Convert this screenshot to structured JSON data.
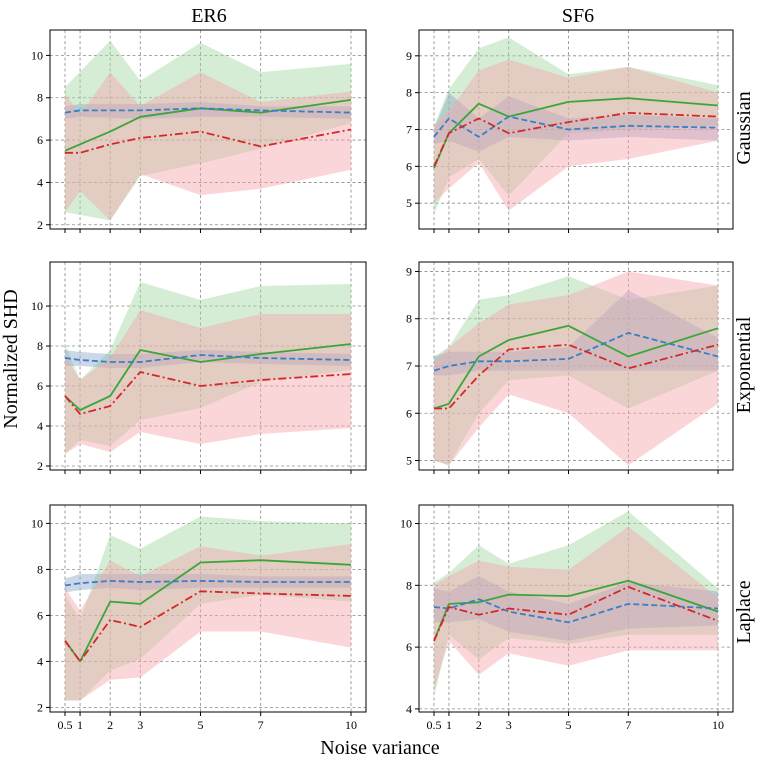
{
  "figure": {
    "xlabel": "Noise variance",
    "ylabel": "Normalized SHD",
    "col_titles": [
      "ER6",
      "SF6"
    ],
    "row_titles": [
      "Gaussian",
      "Exponential",
      "Laplace"
    ]
  },
  "colors": {
    "green": "#3aa63a",
    "blue": "#3a7fc4",
    "red": "#d62728",
    "green_fill": "#9fd89f",
    "blue_fill": "#8fa9c9",
    "red_fill": "#f7a3aa"
  },
  "chart_data": [
    {
      "type": "line",
      "panel": "ER6-Gaussian",
      "column": "ER6",
      "row": "Gaussian",
      "x": [
        0.5,
        1,
        2,
        3,
        5,
        7,
        10
      ],
      "xticks": [
        "0.5",
        "1",
        "2",
        "3",
        "5",
        "7",
        "10"
      ],
      "xlim": [
        0.5,
        10
      ],
      "ylim": [
        1.8,
        11.2
      ],
      "yticks": [
        2,
        4,
        6,
        8,
        10
      ],
      "series": [
        {
          "name": "green",
          "style": "solid",
          "values": [
            5.5,
            6.4,
            7.1,
            7.5,
            7.3,
            7.9
          ],
          "x": [
            0.5,
            2,
            3,
            5,
            7,
            10
          ],
          "band_low": [
            2.6,
            2.2,
            4.3,
            4.9,
            5.6,
            6.8
          ],
          "band_high": [
            8.5,
            10.7,
            8.8,
            10.6,
            9.2,
            9.6
          ]
        },
        {
          "name": "blue",
          "style": "dashed",
          "values": [
            7.3,
            7.4,
            7.4,
            7.5,
            7.4,
            7.3
          ],
          "x": [
            0.5,
            1,
            3,
            5,
            7,
            10
          ],
          "band_low": [
            7.0,
            7.1,
            7.0,
            7.1,
            7.1,
            7.0
          ],
          "band_high": [
            7.6,
            7.7,
            7.7,
            7.8,
            7.6,
            7.6
          ]
        },
        {
          "name": "red",
          "style": "dashdot",
          "values": [
            5.4,
            5.4,
            5.8,
            6.1,
            6.4,
            5.7,
            6.5
          ],
          "x": [
            0.5,
            1,
            2,
            3,
            5,
            7,
            10
          ],
          "band_low": [
            2.6,
            3.6,
            2.2,
            4.4,
            3.4,
            3.7,
            4.6
          ],
          "band_high": [
            8.2,
            7.2,
            9.2,
            7.6,
            9.2,
            7.8,
            8.3
          ]
        }
      ]
    },
    {
      "type": "line",
      "panel": "SF6-Gaussian",
      "column": "SF6",
      "row": "Gaussian",
      "x": [
        0.5,
        1,
        2,
        3,
        5,
        7,
        10
      ],
      "xticks": [
        "0.5",
        "1",
        "2",
        "3",
        "5",
        "7",
        "10"
      ],
      "xlim": [
        0.5,
        10
      ],
      "ylim": [
        4.3,
        9.7
      ],
      "yticks": [
        5,
        6,
        7,
        8,
        9
      ],
      "series": [
        {
          "name": "green",
          "style": "solid",
          "values": [
            5.95,
            6.9,
            7.7,
            7.35,
            7.75,
            7.85,
            7.65
          ],
          "x": [
            0.5,
            1,
            2,
            3,
            5,
            7,
            10
          ],
          "band_low": [
            4.7,
            5.7,
            6.2,
            5.2,
            6.9,
            7.0,
            7.1
          ],
          "band_high": [
            7.1,
            8.1,
            9.2,
            9.5,
            8.5,
            8.7,
            8.2
          ]
        },
        {
          "name": "blue",
          "style": "dashed",
          "values": [
            6.8,
            7.3,
            6.8,
            7.35,
            7.0,
            7.1,
            7.05
          ],
          "x": [
            0.5,
            1,
            2,
            3,
            5,
            7,
            10
          ],
          "band_low": [
            6.6,
            6.7,
            6.4,
            6.8,
            6.7,
            6.8,
            6.7
          ],
          "band_high": [
            7.0,
            8.0,
            7.3,
            7.9,
            7.3,
            7.4,
            7.3
          ]
        },
        {
          "name": "red",
          "style": "dashdot",
          "values": [
            6.0,
            6.9,
            7.3,
            6.9,
            7.2,
            7.45,
            7.35
          ],
          "x": [
            0.5,
            1,
            2,
            3,
            5,
            7,
            10
          ],
          "band_low": [
            5.0,
            5.4,
            6.1,
            4.8,
            6.0,
            6.2,
            6.7
          ],
          "band_high": [
            7.1,
            7.5,
            8.6,
            8.9,
            8.4,
            8.7,
            8.0
          ]
        }
      ]
    },
    {
      "type": "line",
      "panel": "ER6-Exponential",
      "column": "ER6",
      "row": "Exponential",
      "x": [
        0.5,
        1,
        2,
        3,
        5,
        7,
        10
      ],
      "xticks": [
        "0.5",
        "1",
        "2",
        "3",
        "5",
        "7",
        "10"
      ],
      "xlim": [
        0.5,
        10
      ],
      "ylim": [
        1.8,
        12.2
      ],
      "yticks": [
        2,
        4,
        6,
        8,
        10
      ],
      "series": [
        {
          "name": "green",
          "style": "solid",
          "values": [
            5.5,
            4.8,
            5.5,
            7.8,
            7.2,
            7.6,
            8.1
          ],
          "x": [
            0.5,
            1,
            2,
            3,
            5,
            7,
            10
          ],
          "band_low": [
            2.6,
            3.3,
            3.0,
            4.3,
            4.9,
            6.2,
            6.8
          ],
          "band_high": [
            8.1,
            6.3,
            7.8,
            11.2,
            10.3,
            11.0,
            11.1
          ]
        },
        {
          "name": "blue",
          "style": "dashed",
          "values": [
            7.4,
            7.3,
            7.2,
            7.2,
            7.55,
            7.4,
            7.3
          ],
          "x": [
            0.5,
            1,
            2,
            3,
            5,
            7,
            10
          ],
          "band_low": [
            7.0,
            7.0,
            6.9,
            6.9,
            7.2,
            7.1,
            7.0
          ],
          "band_high": [
            7.8,
            7.7,
            7.6,
            7.6,
            7.8,
            7.7,
            7.6
          ]
        },
        {
          "name": "red",
          "style": "dashdot",
          "values": [
            5.5,
            4.6,
            5.0,
            6.7,
            6.0,
            6.3,
            6.6
          ],
          "x": [
            0.5,
            1,
            2,
            3,
            5,
            7,
            10
          ],
          "band_low": [
            2.6,
            3.1,
            2.7,
            3.7,
            3.1,
            3.6,
            3.9
          ],
          "band_high": [
            7.5,
            6.3,
            7.4,
            9.8,
            8.9,
            9.6,
            9.6
          ]
        }
      ]
    },
    {
      "type": "line",
      "panel": "SF6-Exponential",
      "column": "SF6",
      "row": "Exponential",
      "x": [
        0.5,
        1,
        2,
        3,
        5,
        7,
        10
      ],
      "xticks": [
        "0.5",
        "1",
        "2",
        "3",
        "5",
        "7",
        "10"
      ],
      "xlim": [
        0.5,
        10
      ],
      "ylim": [
        4.8,
        9.2
      ],
      "yticks": [
        5,
        6,
        7,
        8,
        9
      ],
      "series": [
        {
          "name": "green",
          "style": "solid",
          "values": [
            6.1,
            6.2,
            7.2,
            7.55,
            7.85,
            7.2,
            7.8
          ],
          "x": [
            0.5,
            1,
            2,
            3,
            5,
            7,
            10
          ],
          "band_low": [
            5.0,
            4.9,
            6.0,
            6.7,
            6.8,
            6.1,
            6.9
          ],
          "band_high": [
            7.2,
            7.4,
            8.4,
            8.5,
            8.9,
            8.4,
            8.7
          ]
        },
        {
          "name": "blue",
          "style": "dashed",
          "values": [
            6.9,
            7.0,
            7.1,
            7.1,
            7.15,
            7.7,
            7.2
          ],
          "x": [
            0.5,
            1,
            2,
            3,
            5,
            7,
            10
          ],
          "band_low": [
            6.8,
            6.8,
            6.9,
            6.9,
            6.9,
            6.9,
            6.9
          ],
          "band_high": [
            7.2,
            7.3,
            7.3,
            7.3,
            7.4,
            8.6,
            7.6
          ]
        },
        {
          "name": "red",
          "style": "dashdot",
          "values": [
            6.1,
            6.1,
            6.8,
            7.35,
            7.45,
            6.95,
            7.45
          ],
          "x": [
            0.5,
            1,
            2,
            3,
            5,
            7,
            10
          ],
          "band_low": [
            5.0,
            4.9,
            5.7,
            6.4,
            6.0,
            4.9,
            6.2
          ],
          "band_high": [
            7.1,
            7.4,
            7.9,
            8.3,
            8.5,
            9.0,
            8.7
          ]
        }
      ]
    },
    {
      "type": "line",
      "panel": "ER6-Laplace",
      "column": "ER6",
      "row": "Laplace",
      "x": [
        0.5,
        1,
        2,
        3,
        5,
        7,
        10
      ],
      "xticks": [
        "0.5",
        "1",
        "2",
        "3",
        "5",
        "7",
        "10"
      ],
      "xlim": [
        0.5,
        10
      ],
      "ylim": [
        1.8,
        10.8
      ],
      "yticks": [
        2,
        4,
        6,
        8,
        10
      ],
      "series": [
        {
          "name": "green",
          "style": "solid",
          "values": [
            4.9,
            4.0,
            6.6,
            6.5,
            8.3,
            8.4,
            8.2
          ],
          "x": [
            0.5,
            1,
            2,
            3,
            5,
            7,
            10
          ],
          "band_low": [
            2.3,
            2.3,
            3.6,
            4.1,
            6.5,
            6.9,
            6.6
          ],
          "band_high": [
            6.9,
            5.8,
            9.5,
            8.9,
            10.3,
            10.1,
            10.0
          ]
        },
        {
          "name": "blue",
          "style": "dashed",
          "values": [
            7.3,
            7.4,
            7.5,
            7.45,
            7.5,
            7.45,
            7.45
          ],
          "x": [
            0.5,
            1,
            2,
            3,
            5,
            7,
            10
          ],
          "band_low": [
            7.0,
            7.1,
            7.2,
            7.1,
            7.2,
            7.2,
            7.2
          ],
          "band_high": [
            7.6,
            7.8,
            7.8,
            7.8,
            7.8,
            7.7,
            7.7
          ]
        },
        {
          "name": "red",
          "style": "dashdot",
          "values": [
            4.9,
            4.0,
            5.8,
            5.5,
            7.05,
            6.95,
            6.85
          ],
          "x": [
            0.5,
            1,
            2,
            3,
            5,
            7,
            10
          ],
          "band_low": [
            2.3,
            2.3,
            3.2,
            3.3,
            5.3,
            5.3,
            4.6
          ],
          "band_high": [
            7.2,
            6.2,
            8.4,
            7.7,
            9.0,
            8.6,
            9.1
          ]
        }
      ]
    },
    {
      "type": "line",
      "panel": "SF6-Laplace",
      "column": "SF6",
      "row": "Laplace",
      "x": [
        0.5,
        1,
        2,
        3,
        5,
        7,
        10
      ],
      "xticks": [
        "0.5",
        "1",
        "2",
        "3",
        "5",
        "7",
        "10"
      ],
      "xlim": [
        0.5,
        10
      ],
      "ylim": [
        3.9,
        10.6
      ],
      "yticks": [
        4,
        6,
        8,
        10
      ],
      "series": [
        {
          "name": "green",
          "style": "solid",
          "values": [
            6.2,
            7.4,
            7.45,
            7.7,
            7.65,
            8.15,
            7.15
          ],
          "x": [
            0.5,
            1,
            2,
            3,
            5,
            7,
            10
          ],
          "band_low": [
            4.4,
            6.4,
            5.6,
            6.3,
            6.1,
            6.4,
            6.4
          ],
          "band_high": [
            8.1,
            8.4,
            9.3,
            8.7,
            9.3,
            10.4,
            7.9
          ]
        },
        {
          "name": "blue",
          "style": "dashed",
          "values": [
            7.3,
            7.25,
            7.55,
            7.15,
            6.8,
            7.4,
            7.25
          ],
          "x": [
            0.5,
            1,
            2,
            3,
            5,
            7,
            10
          ],
          "band_low": [
            6.8,
            6.8,
            6.9,
            6.5,
            6.2,
            6.6,
            6.7
          ],
          "band_high": [
            7.9,
            7.8,
            8.3,
            7.8,
            7.4,
            8.1,
            7.8
          ]
        },
        {
          "name": "red",
          "style": "dashdot",
          "values": [
            6.2,
            7.3,
            7.05,
            7.25,
            7.05,
            7.95,
            6.85
          ],
          "x": [
            0.5,
            1,
            2,
            3,
            5,
            7,
            10
          ],
          "band_low": [
            4.6,
            6.2,
            5.1,
            5.8,
            5.4,
            5.9,
            5.9
          ],
          "band_high": [
            8.0,
            8.3,
            8.8,
            8.6,
            8.5,
            9.9,
            7.6
          ]
        }
      ]
    }
  ]
}
